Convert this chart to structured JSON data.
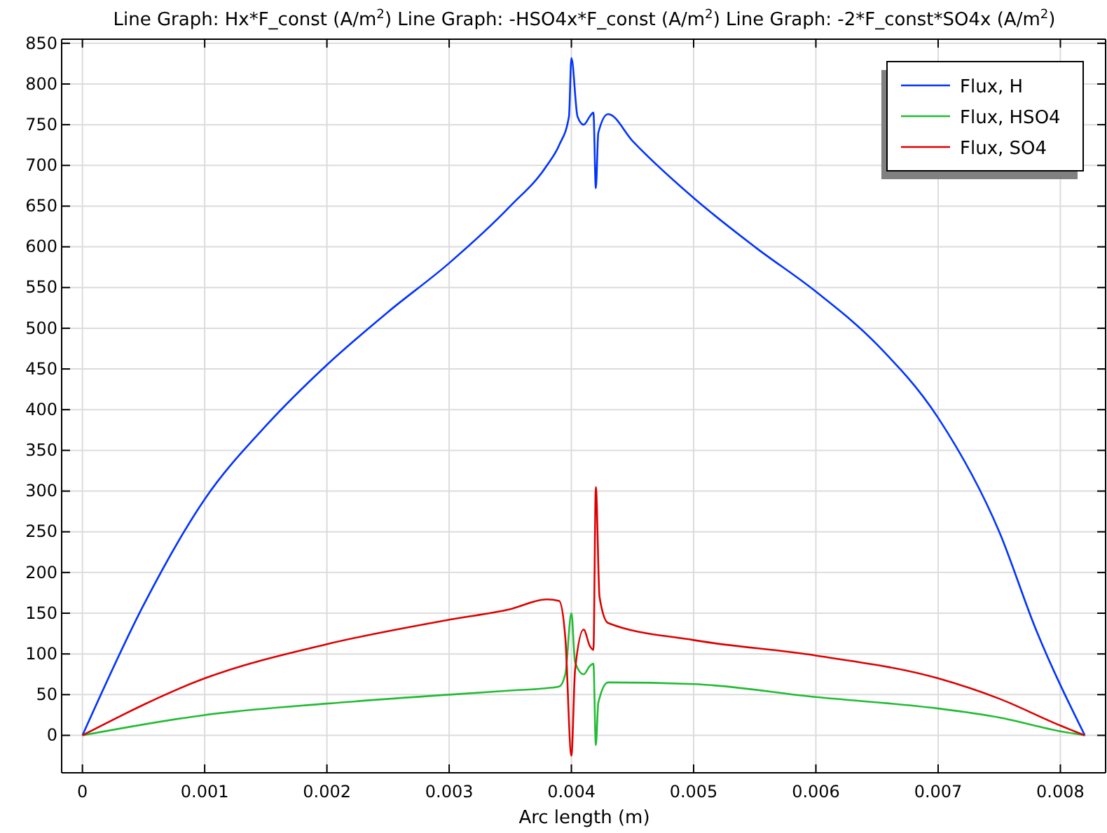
{
  "chart_data": {
    "type": "line",
    "title": "Line Graph: Hx*F_const (A/m$^{2}$)  Line Graph: -HSO4x*F_const (A/m$^{2}$)  Line Graph: -2*F_const*SO4x (A/m$^{2}$)",
    "xlabel": "Arc length (m)",
    "xlim": [
      -0.00017,
      0.00837
    ],
    "ylim": [
      -46,
      855
    ],
    "xticks": [
      0,
      0.001,
      0.002,
      0.003,
      0.004,
      0.005,
      0.006,
      0.007,
      0.008
    ],
    "yticks": [
      0,
      50,
      100,
      150,
      200,
      250,
      300,
      350,
      400,
      450,
      500,
      550,
      600,
      650,
      700,
      750,
      800,
      850
    ],
    "grid": true,
    "legend": "top right",
    "line_style": "solid",
    "marker": "none",
    "series": [
      {
        "name": "Flux, H",
        "color": "#0033ff",
        "x": [
          0,
          0.0005,
          0.001,
          0.0015,
          0.002,
          0.0025,
          0.003,
          0.0035,
          0.0038,
          0.0039,
          0.00398,
          0.004,
          0.00405,
          0.0041,
          0.00415,
          0.00418,
          0.0042,
          0.00422,
          0.0043,
          0.0045,
          0.005,
          0.0055,
          0.006,
          0.0065,
          0.007,
          0.0075,
          0.0078,
          0.0082
        ],
        "values": [
          0,
          160,
          290,
          380,
          455,
          520,
          580,
          650,
          700,
          725,
          760,
          832,
          760,
          750,
          760,
          765,
          672,
          740,
          763,
          730,
          660,
          600,
          545,
          480,
          390,
          250,
          130,
          0
        ]
      },
      {
        "name": "Flux, HSO4",
        "color": "#22bb33",
        "x": [
          0,
          0.001,
          0.002,
          0.003,
          0.0035,
          0.0038,
          0.0039,
          0.00395,
          0.004,
          0.00403,
          0.0041,
          0.00415,
          0.00418,
          0.0042,
          0.00422,
          0.0043,
          0.005,
          0.006,
          0.007,
          0.0075,
          0.008,
          0.0082
        ],
        "values": [
          0,
          25,
          39,
          50,
          55,
          58,
          60,
          75,
          150,
          90,
          75,
          85,
          88,
          -12,
          40,
          65,
          63,
          47,
          33,
          22,
          5,
          0
        ]
      },
      {
        "name": "Flux, SO4",
        "color": "#dd0000",
        "x": [
          0,
          0.001,
          0.002,
          0.003,
          0.0035,
          0.0038,
          0.0039,
          0.00395,
          0.004,
          0.00403,
          0.0041,
          0.00415,
          0.00418,
          0.0042,
          0.00423,
          0.0043,
          0.005,
          0.006,
          0.007,
          0.0075,
          0.008,
          0.0082
        ],
        "values": [
          0,
          70,
          112,
          142,
          155,
          167,
          165,
          120,
          -25,
          80,
          130,
          110,
          105,
          305,
          170,
          138,
          117,
          98,
          70,
          45,
          12,
          0
        ]
      }
    ]
  }
}
